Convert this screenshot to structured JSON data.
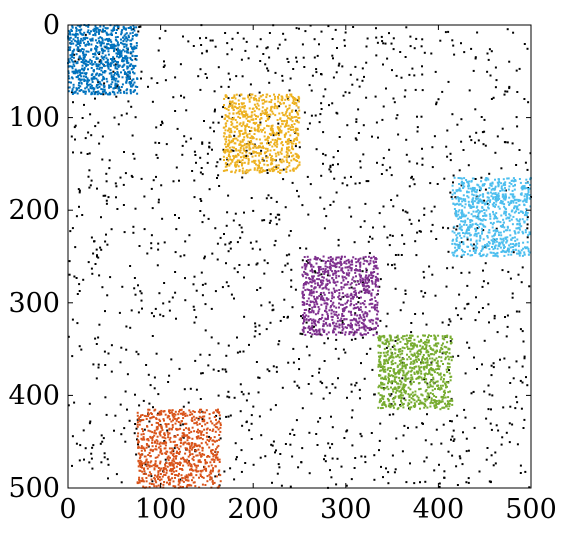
{
  "chart_data": {
    "type": "scatter",
    "title": "",
    "xlabel": "",
    "ylabel": "",
    "xlim": [
      0,
      500
    ],
    "ylim": [
      500,
      0
    ],
    "y_axis_inverted": true,
    "grid": false,
    "legend": "none",
    "xticks": [
      {
        "value": 0,
        "label": "0"
      },
      {
        "value": 100,
        "label": "100"
      },
      {
        "value": 200,
        "label": "200"
      },
      {
        "value": 300,
        "label": "300"
      },
      {
        "value": 400,
        "label": "400"
      },
      {
        "value": 500,
        "label": "500"
      }
    ],
    "yticks": [
      {
        "value": 0,
        "label": "0"
      },
      {
        "value": 100,
        "label": "100"
      },
      {
        "value": 200,
        "label": "200"
      },
      {
        "value": 300,
        "label": "300"
      },
      {
        "value": 400,
        "label": "400"
      },
      {
        "value": 500,
        "label": "500"
      }
    ],
    "background_noise": {
      "color": "#000000",
      "x_range": [
        0,
        500
      ],
      "y_range": [
        0,
        500
      ],
      "approximate_point_count": 1500
    },
    "clusters": [
      {
        "color": "#0072BD",
        "x_range": [
          0,
          75
        ],
        "y_range": [
          0,
          75
        ],
        "approximate_point_count": 800
      },
      {
        "color": "#EDB120",
        "x_range": [
          168,
          250
        ],
        "y_range": [
          75,
          160
        ],
        "approximate_point_count": 800
      },
      {
        "color": "#4DBEEE",
        "x_range": [
          415,
          500
        ],
        "y_range": [
          165,
          250
        ],
        "approximate_point_count": 800
      },
      {
        "color": "#7E2F8E",
        "x_range": [
          253,
          335
        ],
        "y_range": [
          250,
          335
        ],
        "approximate_point_count": 800
      },
      {
        "color": "#77AC30",
        "x_range": [
          335,
          415
        ],
        "y_range": [
          335,
          415
        ],
        "approximate_point_count": 800
      },
      {
        "color": "#D95319",
        "x_range": [
          75,
          165
        ],
        "y_range": [
          415,
          500
        ],
        "approximate_point_count": 800
      }
    ]
  }
}
